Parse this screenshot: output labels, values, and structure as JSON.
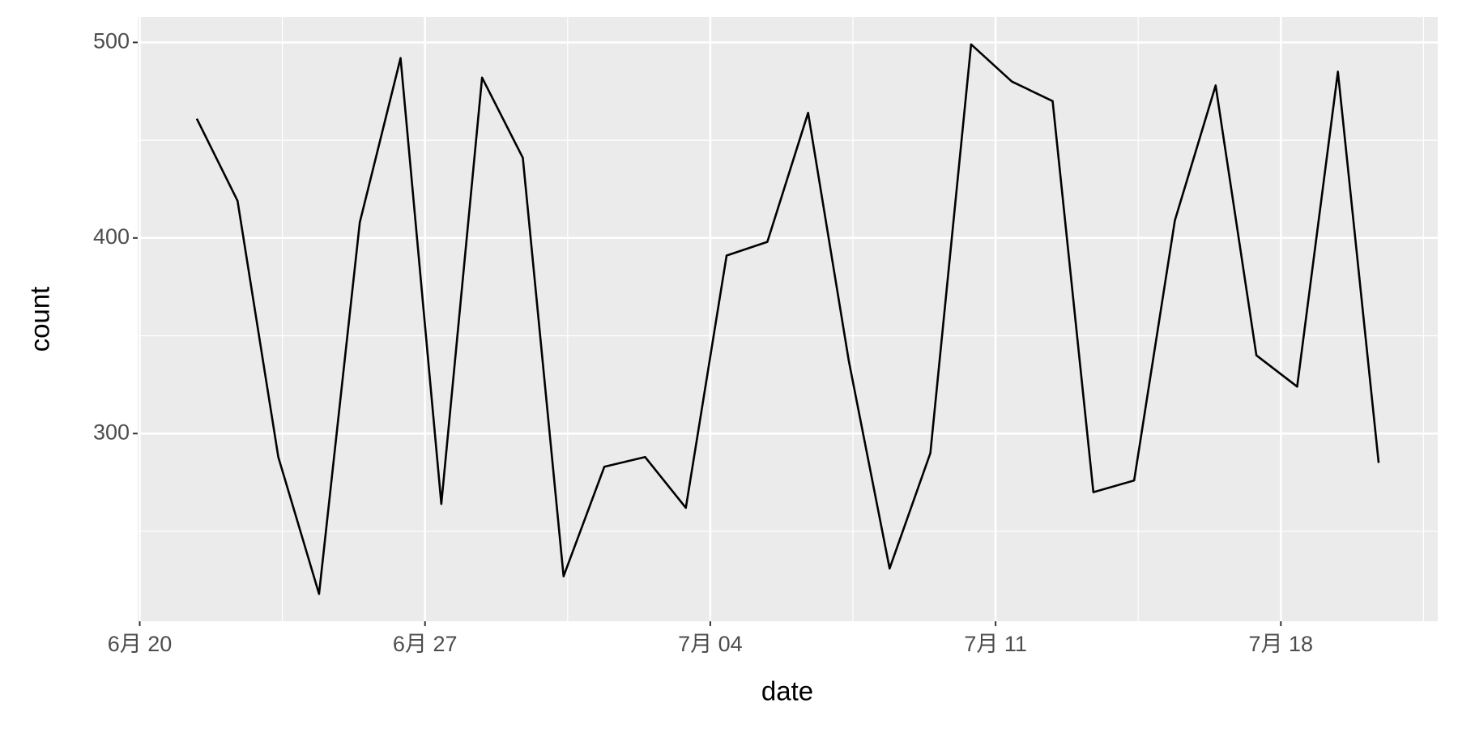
{
  "chart_data": {
    "type": "line",
    "x_label": "date",
    "y_label": "count",
    "x": [
      1.4,
      2.4,
      3.4,
      4.4,
      5.4,
      6.4,
      7.4,
      8.4,
      9.4,
      10.4,
      11.4,
      12.4,
      13.4,
      14.4,
      15.4,
      16.4,
      17.4,
      18.4,
      19.4,
      20.4,
      21.4,
      22.4,
      23.4,
      24.4,
      25.4,
      26.4,
      27.4,
      28.4,
      29.4,
      30.4
    ],
    "series": [
      {
        "color": "#000000",
        "values": [
          461,
          419,
          288,
          218,
          408,
          492,
          264,
          482,
          441,
          227,
          283,
          288,
          262,
          391,
          398,
          464,
          337,
          231,
          290,
          499,
          480,
          470,
          270,
          276,
          409,
          478,
          340,
          324,
          485,
          285
        ]
      }
    ],
    "xlim": [
      -0.05,
      31.85
    ],
    "xticks": [
      {
        "value": 0,
        "label": "6月 20"
      },
      {
        "value": 7,
        "label": "6月 27"
      },
      {
        "value": 14,
        "label": "7月 04"
      },
      {
        "value": 21,
        "label": "7月 11"
      },
      {
        "value": 28,
        "label": "7月 18"
      }
    ],
    "ylim": [
      204,
      513
    ],
    "yticks": [
      300,
      400,
      500
    ],
    "grid": true,
    "panel_color": "#ebebeb"
  }
}
